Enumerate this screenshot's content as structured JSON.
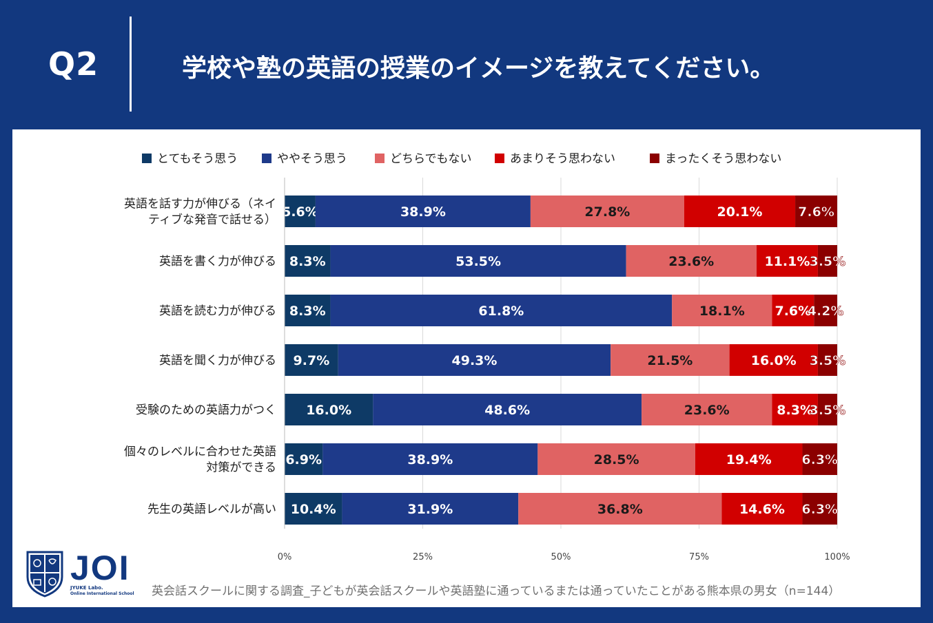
{
  "header": {
    "q_label": "Q2",
    "title": "学校や塾の英語の授業のイメージを教えてください。"
  },
  "colors": {
    "background": "#12387f",
    "series": [
      "#0e3a66",
      "#1e3a8a",
      "#e06363",
      "#d10000",
      "#8b0000"
    ]
  },
  "chart_data": {
    "type": "bar",
    "orientation": "horizontal-stacked-100",
    "categories": [
      [
        "英語を話す力が伸びる（ネイ",
        "ティブな発音で話せる）"
      ],
      [
        "英語を書く力が伸びる"
      ],
      [
        "英語を読む力が伸びる"
      ],
      [
        "英語を聞く力が伸びる"
      ],
      [
        "受験のための英語力がつく"
      ],
      [
        "個々のレベルに合わせた英語",
        "対策ができる"
      ],
      [
        "先生の英語レベルが高い"
      ]
    ],
    "series": [
      {
        "name": "とてもそう思う",
        "values": [
          5.6,
          8.3,
          8.3,
          9.7,
          16.0,
          6.9,
          10.4
        ]
      },
      {
        "name": "ややそう思う",
        "values": [
          38.9,
          53.5,
          61.8,
          49.3,
          48.6,
          38.9,
          31.9
        ]
      },
      {
        "name": "どちらでもない",
        "values": [
          27.8,
          23.6,
          18.1,
          21.5,
          23.6,
          28.5,
          36.8
        ]
      },
      {
        "name": "あまりそう思わない",
        "values": [
          20.1,
          11.1,
          7.6,
          16.0,
          8.3,
          19.4,
          14.6
        ]
      },
      {
        "name": "まったくそう思わない",
        "values": [
          7.6,
          3.5,
          4.2,
          3.5,
          3.5,
          6.3,
          6.3
        ]
      }
    ],
    "x_ticks": [
      "0%",
      "25%",
      "50%",
      "75%",
      "100%"
    ],
    "xlim": [
      0,
      100
    ],
    "legend": "top-center",
    "grid": true
  },
  "logo": {
    "text": "JOI",
    "sub1": "JYUKE Labo.",
    "sub2": "Online International School"
  },
  "footnote": "英会話スクールに関する調査_子どもが英会話スクールや英語塾に通っているまたは通っていたことがある熊本県の男女（n=144）"
}
